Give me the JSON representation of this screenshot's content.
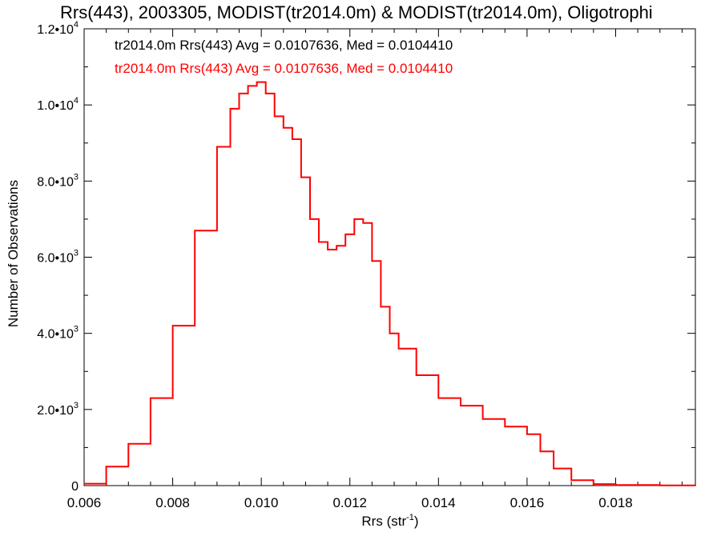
{
  "chart_data": {
    "type": "line",
    "step": true,
    "title": "Rrs(443), 2003305, MODIST(tr2014.0m) & MODIST(tr2014.0m), Oligotrophi",
    "xlabel_base": "Rrs (str",
    "xlabel_sup": "-1",
    "xlabel_close": ")",
    "ylabel": "Number of Observations",
    "xlim": [
      0.006,
      0.0198
    ],
    "ylim": [
      0,
      12000
    ],
    "x_ticks": [
      0.006,
      0.008,
      0.01,
      0.012,
      0.014,
      0.016,
      0.018
    ],
    "x_tick_labels": [
      "0.006",
      "0.008",
      "0.010",
      "0.012",
      "0.014",
      "0.016",
      "0.018"
    ],
    "y_ticks": [
      0,
      2000,
      4000,
      6000,
      8000,
      10000,
      12000
    ],
    "y_tick_labels": [
      {
        "base": "0",
        "exp": ""
      },
      {
        "base": "2.0•1",
        "exp": "3"
      },
      {
        "base": "4.0•1",
        "exp": "3"
      },
      {
        "base": "6.0•1",
        "exp": "3"
      },
      {
        "base": "8.0•1",
        "exp": "3"
      },
      {
        "base": "1.0•1",
        "exp": "4"
      },
      {
        "base": "1.2•1",
        "exp": "4"
      }
    ],
    "annotations": [
      {
        "text": "tr2014.0m Rrs(443) Avg = 0.0107636, Med = 0.0104410",
        "color": "#000000"
      },
      {
        "text": "tr2014.0m Rrs(443) Avg = 0.0107636, Med = 0.0104410",
        "color": "#ff0000"
      }
    ],
    "series": [
      {
        "color": "#ff0000",
        "x": [
          0.006,
          0.0065,
          0.007,
          0.0075,
          0.008,
          0.0085,
          0.009,
          0.0093,
          0.0095,
          0.0097,
          0.0099,
          0.0101,
          0.0103,
          0.0105,
          0.0107,
          0.0109,
          0.0111,
          0.0113,
          0.0115,
          0.0117,
          0.0119,
          0.0121,
          0.0123,
          0.0125,
          0.0127,
          0.0129,
          0.0131,
          0.0135,
          0.014,
          0.0145,
          0.015,
          0.0155,
          0.016,
          0.0163,
          0.0166,
          0.017,
          0.0175,
          0.018,
          0.019,
          0.0198
        ],
        "y": [
          50,
          500,
          1100,
          2300,
          4200,
          6700,
          8900,
          9900,
          10300,
          10500,
          10600,
          10300,
          9700,
          9400,
          9100,
          8100,
          7000,
          6400,
          6200,
          6300,
          6600,
          7000,
          6900,
          5900,
          4700,
          4000,
          3600,
          2900,
          2300,
          2100,
          1750,
          1550,
          1350,
          900,
          450,
          140,
          40,
          15,
          5,
          0
        ]
      }
    ],
    "grid": false,
    "colors": {
      "axis": "#000000",
      "series": "#ff0000",
      "background": "#ffffff"
    }
  }
}
